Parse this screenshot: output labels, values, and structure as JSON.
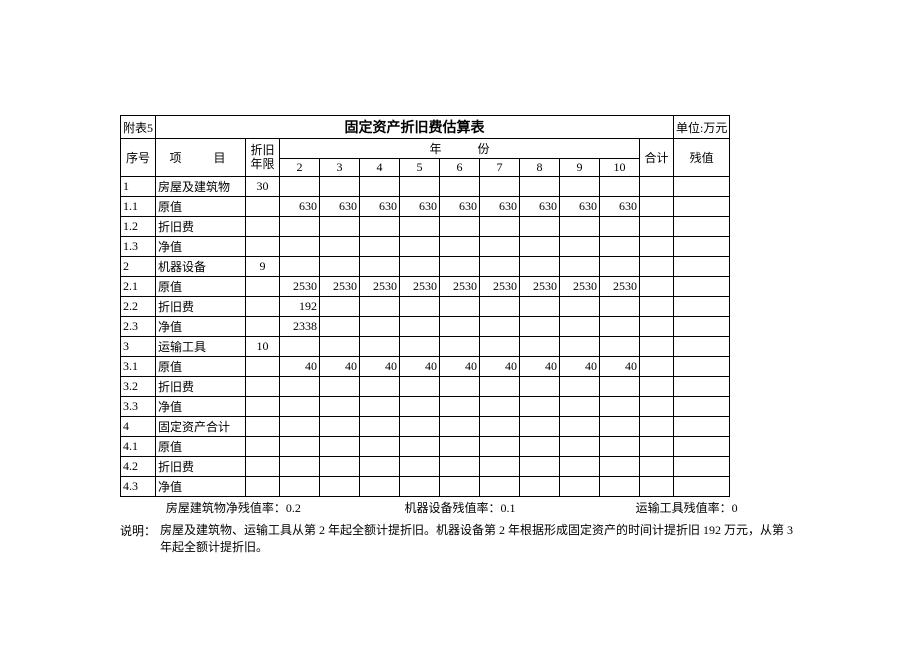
{
  "table": {
    "attachment_label": "附表5",
    "title": "固定资产折旧费估算表",
    "unit_label": "单位:万元",
    "headers": {
      "seq": "序号",
      "item": "项　目",
      "life": "折旧年限",
      "year_group": "年　　　份",
      "sum": "合计",
      "residual": "残值"
    },
    "year_cols": [
      "2",
      "3",
      "4",
      "5",
      "6",
      "7",
      "8",
      "9",
      "10"
    ],
    "rows": [
      {
        "seq": "1",
        "item": "房屋及建筑物",
        "life": "30",
        "vals": [
          "",
          "",
          "",
          "",
          "",
          "",
          "",
          "",
          ""
        ],
        "sum": "",
        "res": ""
      },
      {
        "seq": "1.1",
        "item": "原值",
        "life": "",
        "vals": [
          "630",
          "630",
          "630",
          "630",
          "630",
          "630",
          "630",
          "630",
          "630"
        ],
        "sum": "",
        "res": ""
      },
      {
        "seq": "1.2",
        "item": "折旧费",
        "life": "",
        "vals": [
          "",
          "",
          "",
          "",
          "",
          "",
          "",
          "",
          ""
        ],
        "sum": "",
        "res": ""
      },
      {
        "seq": "1.3",
        "item": "净值",
        "life": "",
        "vals": [
          "",
          "",
          "",
          "",
          "",
          "",
          "",
          "",
          ""
        ],
        "sum": "",
        "res": ""
      },
      {
        "seq": "2",
        "item": "机器设备",
        "life": "9",
        "vals": [
          "",
          "",
          "",
          "",
          "",
          "",
          "",
          "",
          ""
        ],
        "sum": "",
        "res": ""
      },
      {
        "seq": "2.1",
        "item": "原值",
        "life": "",
        "vals": [
          "2530",
          "2530",
          "2530",
          "2530",
          "2530",
          "2530",
          "2530",
          "2530",
          "2530"
        ],
        "sum": "",
        "res": ""
      },
      {
        "seq": "2.2",
        "item": "折旧费",
        "life": "",
        "vals": [
          "192",
          "",
          "",
          "",
          "",
          "",
          "",
          "",
          ""
        ],
        "sum": "",
        "res": ""
      },
      {
        "seq": "2.3",
        "item": "净值",
        "life": "",
        "vals": [
          "2338",
          "",
          "",
          "",
          "",
          "",
          "",
          "",
          ""
        ],
        "sum": "",
        "res": ""
      },
      {
        "seq": "3",
        "item": "运输工具",
        "life": "10",
        "vals": [
          "",
          "",
          "",
          "",
          "",
          "",
          "",
          "",
          ""
        ],
        "sum": "",
        "res": ""
      },
      {
        "seq": "3.1",
        "item": "原值",
        "life": "",
        "vals": [
          "40",
          "40",
          "40",
          "40",
          "40",
          "40",
          "40",
          "40",
          "40"
        ],
        "sum": "",
        "res": ""
      },
      {
        "seq": "3.2",
        "item": "折旧费",
        "life": "",
        "vals": [
          "",
          "",
          "",
          "",
          "",
          "",
          "",
          "",
          ""
        ],
        "sum": "",
        "res": ""
      },
      {
        "seq": "3.3",
        "item": "净值",
        "life": "",
        "vals": [
          "",
          "",
          "",
          "",
          "",
          "",
          "",
          "",
          ""
        ],
        "sum": "",
        "res": ""
      },
      {
        "seq": "4",
        "item": "固定资产合计",
        "life": "",
        "vals": [
          "",
          "",
          "",
          "",
          "",
          "",
          "",
          "",
          ""
        ],
        "sum": "",
        "res": ""
      },
      {
        "seq": "4.1",
        "item": "原值",
        "life": "",
        "vals": [
          "",
          "",
          "",
          "",
          "",
          "",
          "",
          "",
          ""
        ],
        "sum": "",
        "res": ""
      },
      {
        "seq": "4.2",
        "item": "折旧费",
        "life": "",
        "vals": [
          "",
          "",
          "",
          "",
          "",
          "",
          "",
          "",
          ""
        ],
        "sum": "",
        "res": ""
      },
      {
        "seq": "4.3",
        "item": "净值",
        "life": "",
        "vals": [
          "",
          "",
          "",
          "",
          "",
          "",
          "",
          "",
          ""
        ],
        "sum": "",
        "res": ""
      }
    ]
  },
  "footer": {
    "rate1": "房屋建筑物净残值率：0.2",
    "rate2": "机器设备残值率：0.1",
    "rate3": "运输工具残值率：0"
  },
  "note": {
    "label": "说明：",
    "text": "房屋及建筑物、运输工具从第 2 年起全额计提折旧。机器设备第 2 年根据形成固定资产的时间计提折旧 192 万元，从第 3 年起全额计提折旧。"
  }
}
